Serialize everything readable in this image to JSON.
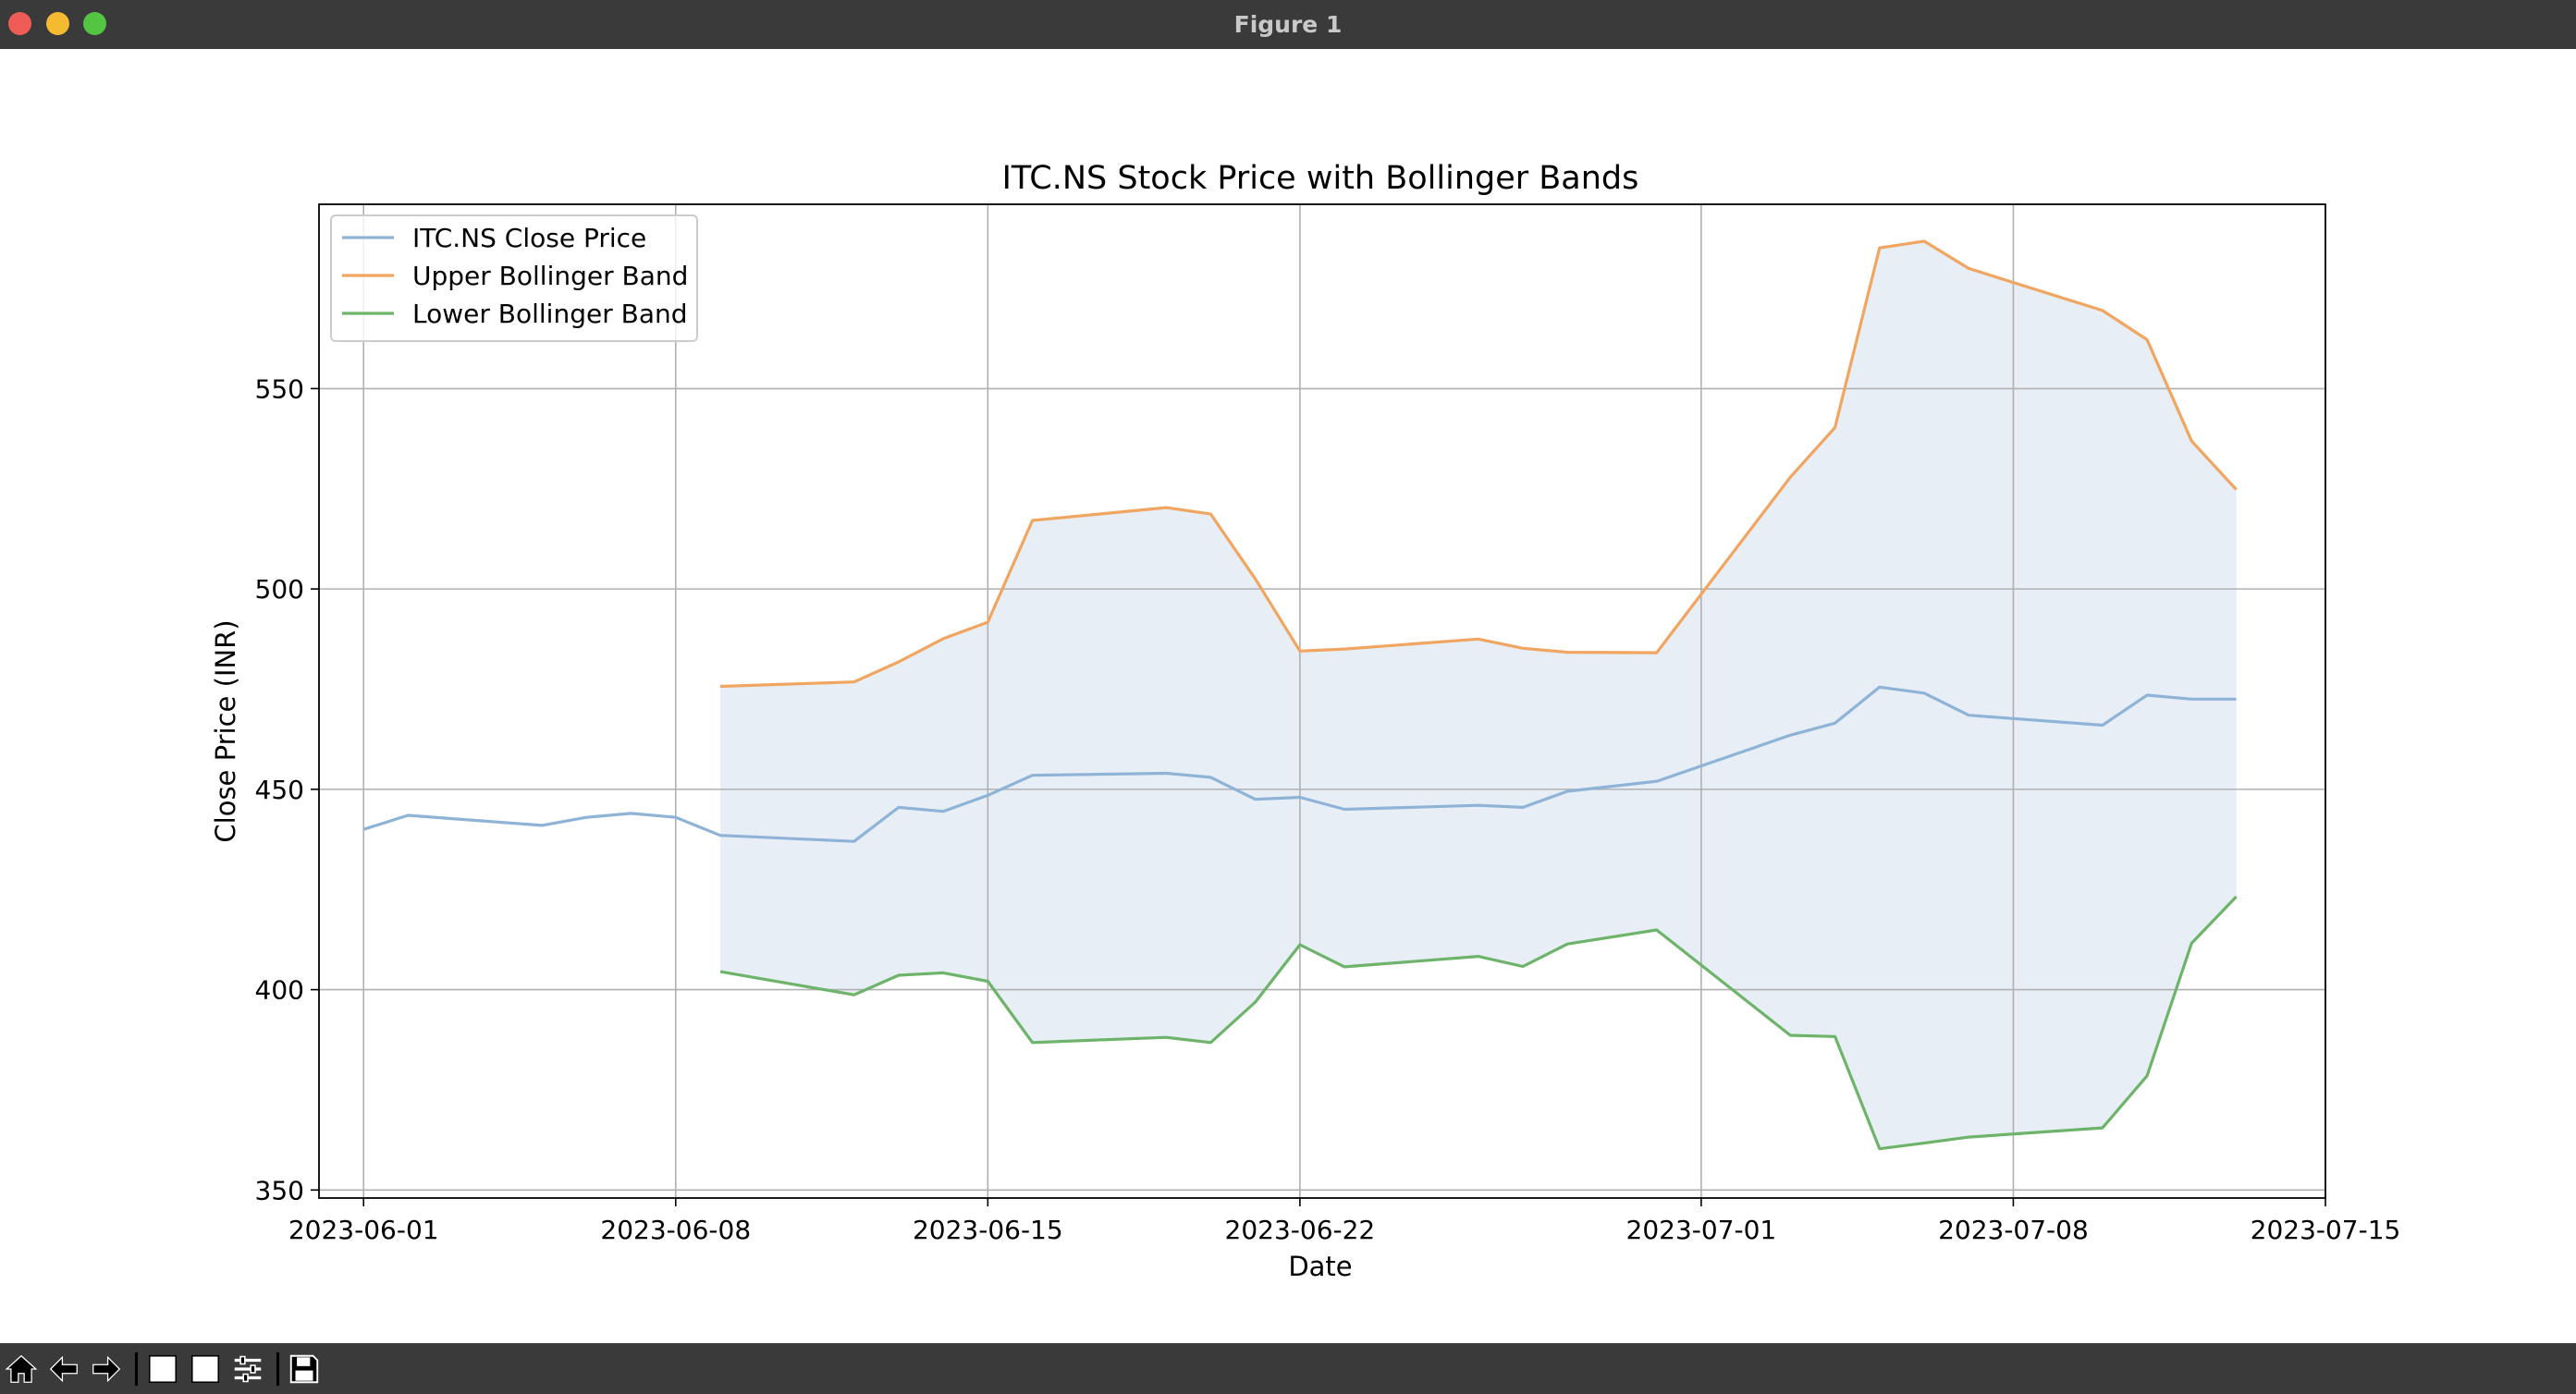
{
  "window": {
    "title": "Figure 1"
  },
  "toolbar": {
    "buttons": [
      {
        "name": "home-icon"
      },
      {
        "name": "back-arrow-icon"
      },
      {
        "name": "forward-arrow-icon"
      },
      {
        "name": "pan-icon"
      },
      {
        "name": "zoom-icon"
      },
      {
        "name": "configure-subplots-icon"
      },
      {
        "name": "save-icon"
      }
    ]
  },
  "colors": {
    "close": "#8fb3d6",
    "upper": "#f0a560",
    "lower": "#6db46a",
    "fill": "#e8eef5",
    "grid": "#b0b0b0"
  },
  "chart_data": {
    "type": "line",
    "title": "ITC.NS Stock Price with Bollinger Bands",
    "xlabel": "Date",
    "ylabel": "Close Price (INR)",
    "xlim": [
      "2023-05-31",
      "2023-07-15"
    ],
    "ylim": [
      348,
      596
    ],
    "xticks": [
      "2023-06-01",
      "2023-06-08",
      "2023-06-15",
      "2023-06-22",
      "2023-07-01",
      "2023-07-08",
      "2023-07-15"
    ],
    "yticks": [
      350,
      400,
      450,
      500,
      550
    ],
    "grid": true,
    "legend_position": "upper left",
    "dates": [
      "2023-06-01",
      "2023-06-02",
      "2023-06-05",
      "2023-06-06",
      "2023-06-07",
      "2023-06-08",
      "2023-06-09",
      "2023-06-12",
      "2023-06-13",
      "2023-06-14",
      "2023-06-15",
      "2023-06-16",
      "2023-06-19",
      "2023-06-20",
      "2023-06-21",
      "2023-06-22",
      "2023-06-23",
      "2023-06-26",
      "2023-06-27",
      "2023-06-28",
      "2023-06-30",
      "2023-07-03",
      "2023-07-04",
      "2023-07-05",
      "2023-07-06",
      "2023-07-07",
      "2023-07-10",
      "2023-07-11",
      "2023-07-12",
      "2023-07-13"
    ],
    "series": [
      {
        "name": "ITC.NS Close Price",
        "values": [
          440,
          443.5,
          441,
          443,
          444,
          443,
          438.5,
          437,
          445.5,
          444.5,
          448.5,
          453.5,
          454,
          453,
          447.5,
          448,
          445,
          446,
          445.5,
          449.5,
          452,
          463.5,
          466.5,
          475.5,
          474,
          468.5,
          466,
          473.5,
          472.5,
          472.5
        ]
      },
      {
        "name": "Upper Bollinger Band",
        "values": [
          null,
          null,
          null,
          null,
          null,
          null,
          475.7,
          476.8,
          481.8,
          487.6,
          491.7,
          517.1,
          520.3,
          518.7,
          502.5,
          484.5,
          485.0,
          487.5,
          485.2,
          484.2,
          484.1,
          527.9,
          540.3,
          585.1,
          586.8,
          580.0,
          569.5,
          562.2,
          536.9,
          524.8
        ]
      },
      {
        "name": "Lower Bollinger Band",
        "values": [
          null,
          null,
          null,
          null,
          null,
          null,
          404.5,
          398.7,
          403.6,
          404.2,
          402.1,
          386.8,
          388.1,
          386.8,
          396.9,
          411.2,
          405.7,
          408.3,
          405.8,
          411.4,
          414.9,
          388.6,
          388.3,
          360.3,
          361.7,
          363.2,
          365.5,
          378.5,
          411.6,
          423.2
        ]
      }
    ]
  }
}
